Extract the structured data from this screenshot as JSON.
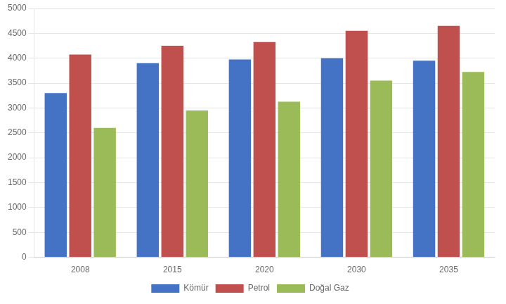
{
  "chart_data": {
    "type": "bar",
    "categories": [
      "2008",
      "2015",
      "2020",
      "2030",
      "2035"
    ],
    "series": [
      {
        "name": "Kömür",
        "color": "#4472C4",
        "values": [
          3300,
          3900,
          3975,
          4000,
          3950
        ]
      },
      {
        "name": "Petrol",
        "color": "#C0504D",
        "values": [
          4075,
          4250,
          4325,
          4550,
          4650
        ]
      },
      {
        "name": "Doğal Gaz",
        "color": "#9BBB59",
        "values": [
          2600,
          2950,
          3125,
          3550,
          3725
        ]
      }
    ],
    "ylim": [
      0,
      5000
    ],
    "yticks": [
      0,
      500,
      1000,
      1500,
      2000,
      2500,
      3000,
      3500,
      4000,
      4500,
      5000
    ],
    "grid": true,
    "legend": "bottom"
  }
}
